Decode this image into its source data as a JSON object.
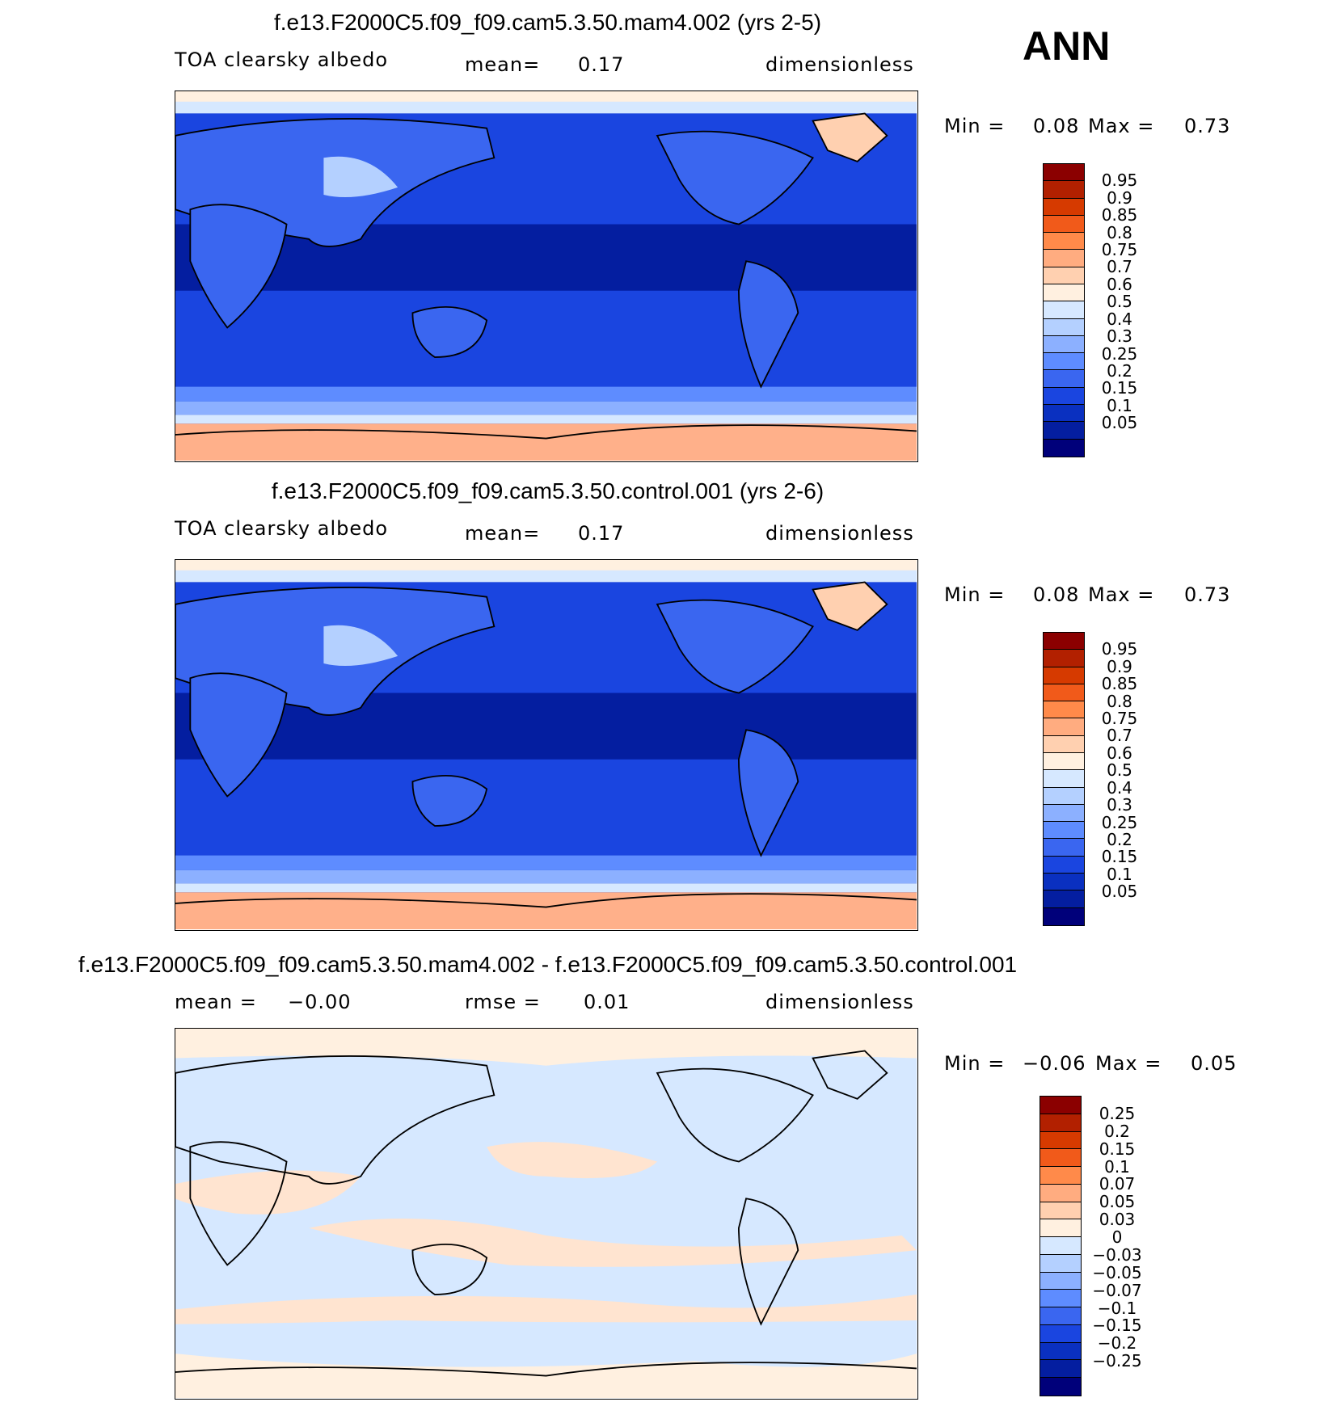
{
  "ann": "ANN",
  "panels": [
    {
      "title": "f.e13.F2000C5.f09_f09.cam5.3.50.mam4.002 (yrs 2-5)",
      "left": "TOA clearsky albedo",
      "mid_label": "mean=",
      "mid_value": "0.17",
      "right": "dimensionless",
      "min_label": "Min =",
      "min_value": "0.08",
      "max_label": "Max =",
      "max_value": "0.73"
    },
    {
      "title": "f.e13.F2000C5.f09_f09.cam5.3.50.control.001 (yrs 2-6)",
      "left": "TOA clearsky albedo",
      "mid_label": "mean=",
      "mid_value": "0.17",
      "right": "dimensionless",
      "min_label": "Min =",
      "min_value": "0.08",
      "max_label": "Max =",
      "max_value": "0.73"
    },
    {
      "title": "f.e13.F2000C5.f09_f09.cam5.3.50.mam4.002 - f.e13.F2000C5.f09_f09.cam5.3.50.control.001",
      "left_label": "mean =",
      "left_value": "−0.00",
      "mid_label": "rmse =",
      "mid_value": "0.01",
      "right": "dimensionless",
      "min_label": "Min =",
      "min_value": "−0.06",
      "max_label": "Max =",
      "max_value": "0.05"
    }
  ],
  "colorbars": {
    "albedo": {
      "colors": [
        "#8b0000",
        "#b22000",
        "#d63a00",
        "#f15a1a",
        "#ff8a4a",
        "#ffac80",
        "#ffd0b0",
        "#fff0e0",
        "#d6e8ff",
        "#b4d0ff",
        "#8cb0ff",
        "#5e8cff",
        "#3a66f0",
        "#1a45e0",
        "#0a30c0",
        "#041ea0",
        "#00007a"
      ],
      "ticks": [
        "0.95",
        "0.9",
        "0.85",
        "0.8",
        "0.75",
        "0.7",
        "0.6",
        "0.5",
        "0.4",
        "0.3",
        "0.25",
        "0.2",
        "0.15",
        "0.1",
        "0.05"
      ]
    },
    "diff": {
      "colors": [
        "#8b0000",
        "#b22000",
        "#d63a00",
        "#f15a1a",
        "#ff8a4a",
        "#ffac80",
        "#ffd0b0",
        "#fff0e0",
        "#d6e8ff",
        "#b4d0ff",
        "#8cb0ff",
        "#5e8cff",
        "#3a66f0",
        "#1a45e0",
        "#0a30c0",
        "#041ea0",
        "#00007a"
      ],
      "ticks": [
        "0.25",
        "0.2",
        "0.15",
        "0.1",
        "0.07",
        "0.05",
        "0.03",
        "0",
        "−0.03",
        "−0.05",
        "−0.07",
        "−0.1",
        "−0.15",
        "−0.2",
        "−0.25"
      ]
    }
  },
  "chart_data": [
    {
      "type": "heatmap",
      "title": "f.e13.F2000C5.f09_f09.cam5.3.50.mam4.002 (yrs 2-5)",
      "variable": "TOA clearsky albedo",
      "units": "dimensionless",
      "mean": 0.17,
      "min": 0.08,
      "max": 0.73,
      "levels": [
        0.05,
        0.1,
        0.15,
        0.2,
        0.25,
        0.3,
        0.4,
        0.5,
        0.6,
        0.7,
        0.75,
        0.8,
        0.85,
        0.9,
        0.95
      ]
    },
    {
      "type": "heatmap",
      "title": "f.e13.F2000C5.f09_f09.cam5.3.50.control.001 (yrs 2-6)",
      "variable": "TOA clearsky albedo",
      "units": "dimensionless",
      "mean": 0.17,
      "min": 0.08,
      "max": 0.73,
      "levels": [
        0.05,
        0.1,
        0.15,
        0.2,
        0.25,
        0.3,
        0.4,
        0.5,
        0.6,
        0.7,
        0.75,
        0.8,
        0.85,
        0.9,
        0.95
      ]
    },
    {
      "type": "heatmap",
      "title": "f.e13.F2000C5.f09_f09.cam5.3.50.mam4.002 - f.e13.F2000C5.f09_f09.cam5.3.50.control.001",
      "units": "dimensionless",
      "mean": -0.0,
      "rmse": 0.01,
      "min": -0.06,
      "max": 0.05,
      "levels": [
        -0.25,
        -0.2,
        -0.15,
        -0.1,
        -0.07,
        -0.05,
        -0.03,
        0,
        0.03,
        0.05,
        0.07,
        0.1,
        0.15,
        0.2,
        0.25
      ]
    }
  ]
}
